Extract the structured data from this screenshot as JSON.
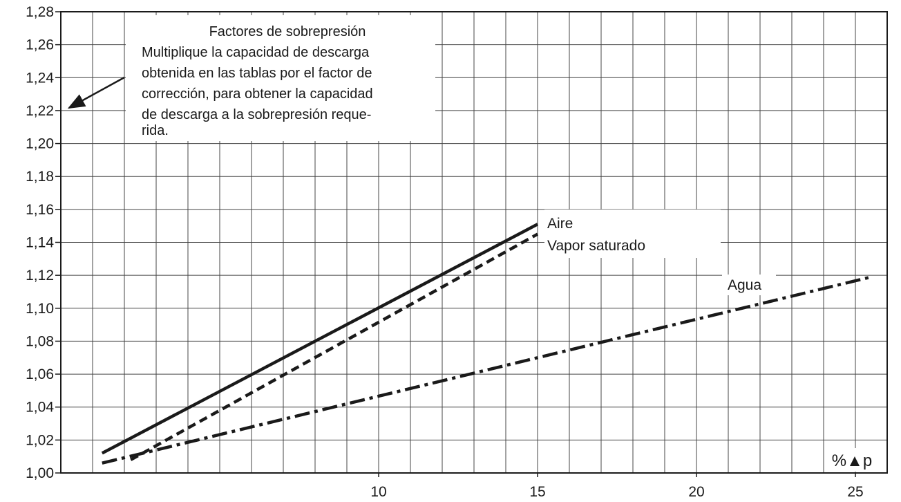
{
  "chart_data": {
    "type": "line",
    "xlabel": "",
    "ylabel": "",
    "axis_unit_label": "%▲p",
    "xlim": [
      0,
      26
    ],
    "ylim": [
      1.0,
      1.28
    ],
    "x_ticks": [
      10,
      15,
      20,
      25
    ],
    "x_tick_labels": [
      "10",
      "15",
      "20",
      "25"
    ],
    "y_ticks": [
      1.0,
      1.02,
      1.04,
      1.06,
      1.08,
      1.1,
      1.12,
      1.14,
      1.16,
      1.18,
      1.2,
      1.22,
      1.24,
      1.26,
      1.28
    ],
    "y_tick_labels": [
      "1,00",
      "1,02",
      "1,04",
      "1,06",
      "1,08",
      "1,10",
      "1,12",
      "1,14",
      "1,16",
      "1,18",
      "1,20",
      "1,22",
      "1,24",
      "1,26",
      "1,28"
    ],
    "grid": true,
    "series": [
      {
        "name": "Aire",
        "style": "solid",
        "x": [
          1.3,
          15
        ],
        "y": [
          1.012,
          1.151
        ]
      },
      {
        "name": "Vapor saturado",
        "style": "dashed",
        "x": [
          2.2,
          15
        ],
        "y": [
          1.008,
          1.145
        ]
      },
      {
        "name": "Agua",
        "style": "dashdot",
        "x": [
          1.3,
          25.5
        ],
        "y": [
          1.006,
          1.119
        ]
      }
    ],
    "annotation": {
      "lines": [
        "Factores de sobrepresión",
        "Multiplique la capacidad de descarga",
        "obtenida en las tablas por el factor de",
        "corrección, para obtener la capacidad",
        "de descarga a la sobrepresión reque-",
        "rida."
      ],
      "arrow_target_y": 1.22
    }
  },
  "colors": {
    "line": "#1a1a1a",
    "grid": "#444444",
    "background": "#ffffff"
  }
}
